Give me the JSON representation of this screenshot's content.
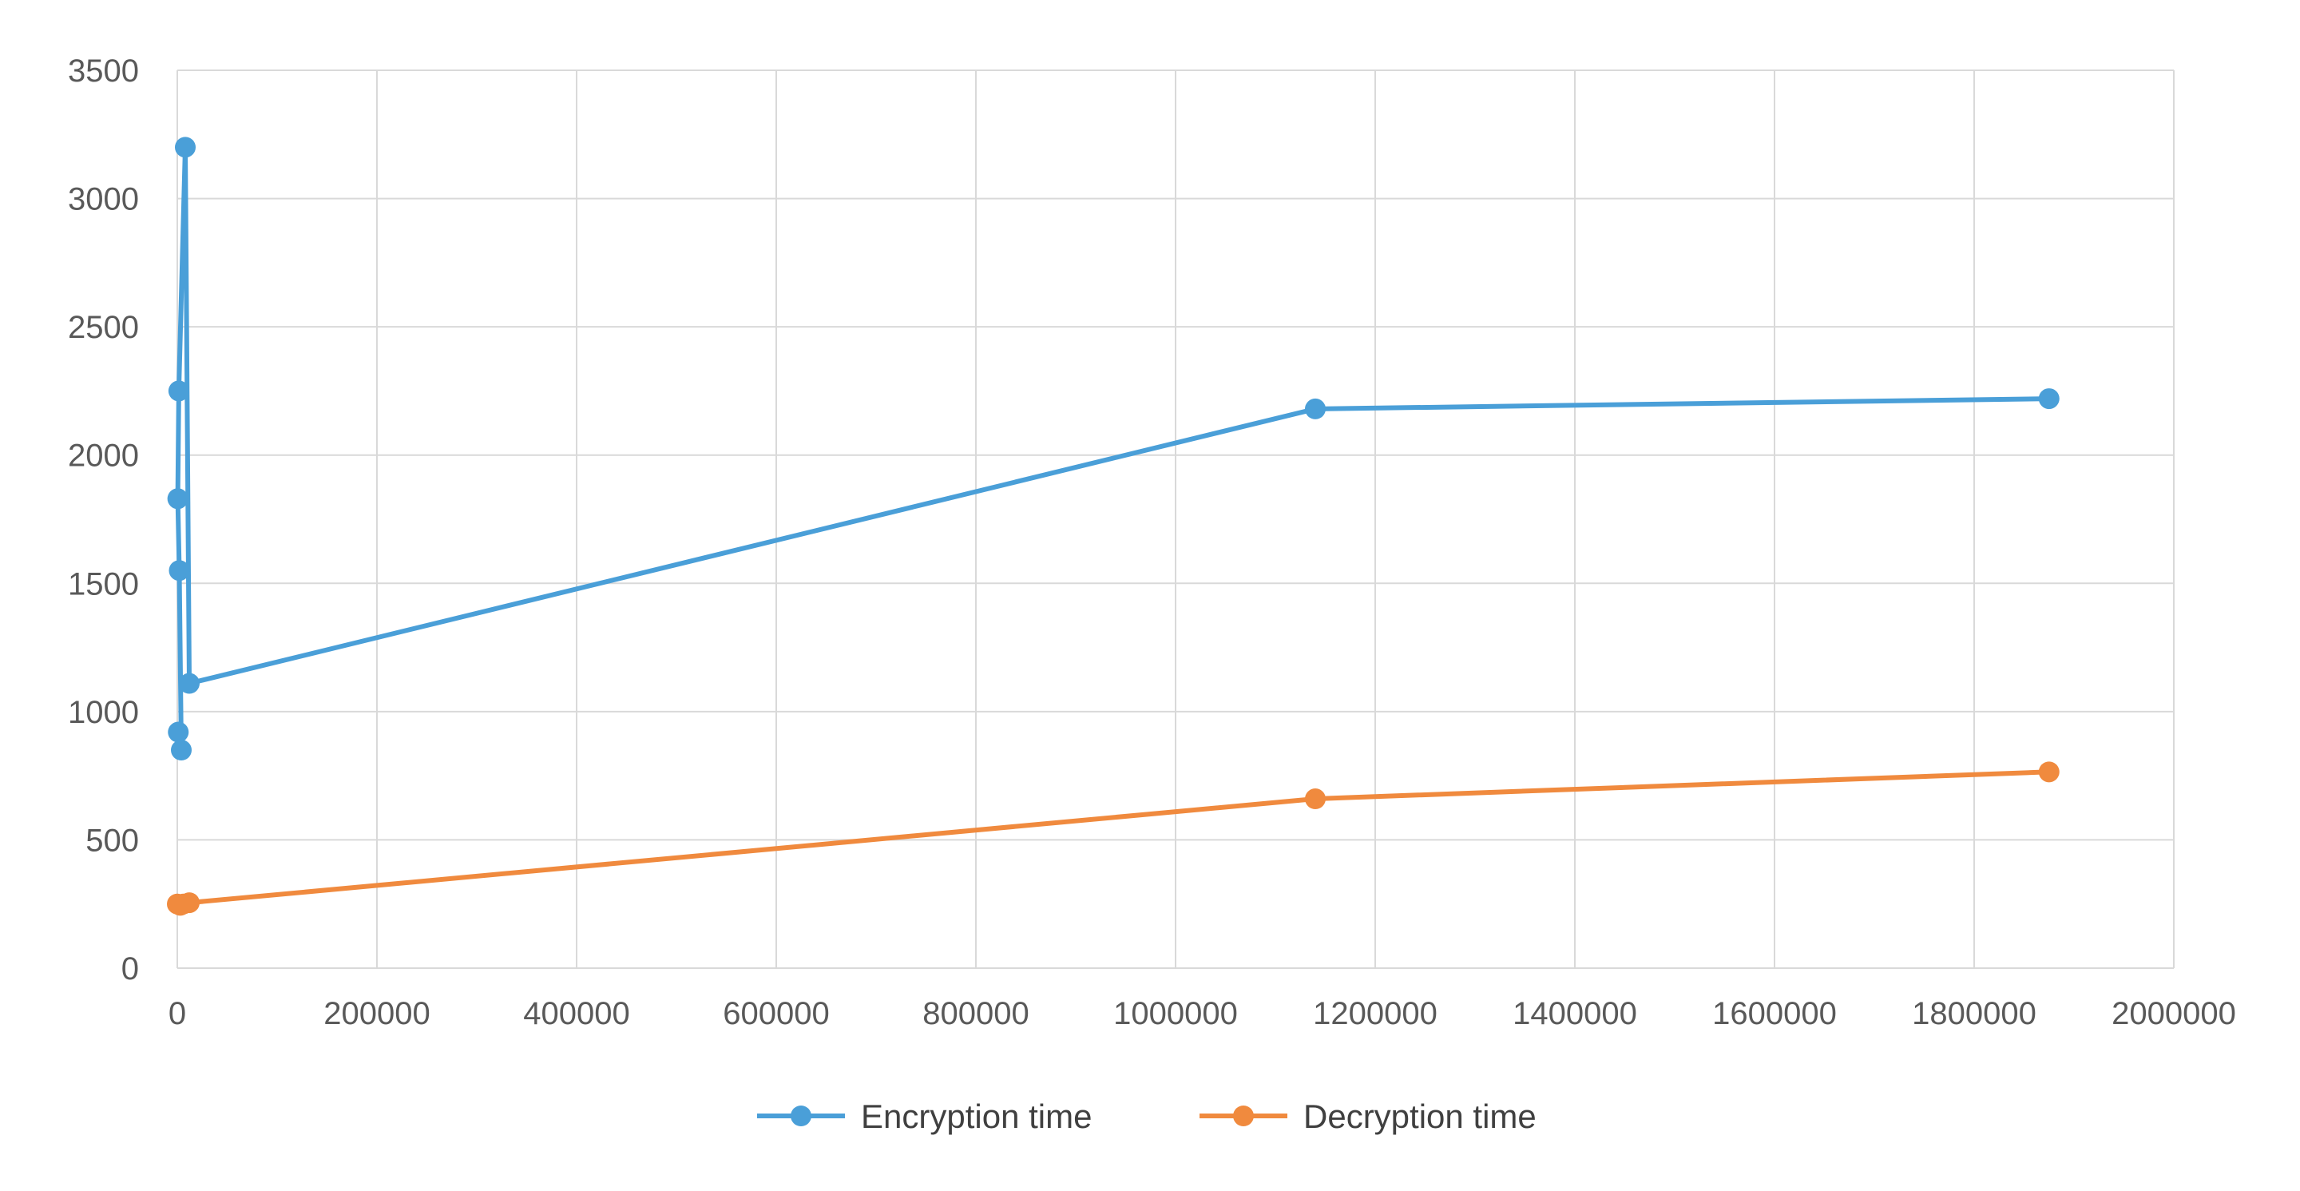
{
  "chart_data": {
    "type": "line",
    "title": "",
    "xlabel": "",
    "ylabel": "",
    "xlim": [
      0,
      2000000
    ],
    "ylim": [
      0,
      3500
    ],
    "x_ticks": [
      0,
      200000,
      400000,
      600000,
      800000,
      1000000,
      1200000,
      1400000,
      1600000,
      1800000,
      2000000
    ],
    "x_tick_labels": [
      "0",
      "200000",
      "400000",
      "600000",
      "800000",
      "1000000",
      "1200000",
      "1400000",
      "1600000",
      "1800000",
      "2000000"
    ],
    "y_ticks": [
      0,
      500,
      1000,
      1500,
      2000,
      2500,
      3000,
      3500
    ],
    "y_tick_labels": [
      "0",
      "500",
      "1000",
      "1500",
      "2000",
      "2500",
      "3000",
      "3500"
    ],
    "grid": true,
    "legend_position": "bottom",
    "series": [
      {
        "name": "Encryption time",
        "color": "#4a9fd8",
        "points": [
          {
            "x": 1000,
            "y": 920
          },
          {
            "x": 4000,
            "y": 850
          },
          {
            "x": 2000,
            "y": 1550
          },
          {
            "x": 500,
            "y": 1830
          },
          {
            "x": 1500,
            "y": 2250
          },
          {
            "x": 8000,
            "y": 3200
          },
          {
            "x": 12000,
            "y": 1110
          },
          {
            "x": 1140000,
            "y": 2180
          },
          {
            "x": 1875000,
            "y": 2220
          }
        ]
      },
      {
        "name": "Decryption time",
        "color": "#f08a3e",
        "points": [
          {
            "x": 0,
            "y": 250
          },
          {
            "x": 3000,
            "y": 245
          },
          {
            "x": 6000,
            "y": 250
          },
          {
            "x": 12000,
            "y": 255
          },
          {
            "x": 1140000,
            "y": 660
          },
          {
            "x": 1875000,
            "y": 765
          }
        ]
      }
    ]
  }
}
